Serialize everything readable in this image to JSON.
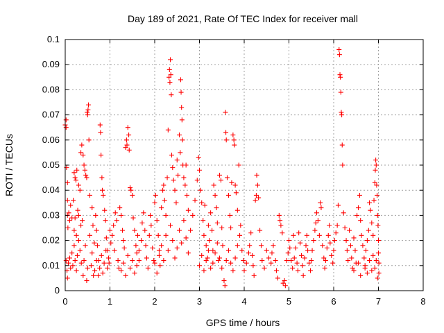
{
  "chart_data": {
    "type": "scatter",
    "title": "Day 189 of 2021, Rate Of TEC Index for receiver mall",
    "xlabel": "GPS time / hours",
    "ylabel": "ROTI / TECUs",
    "xlim": [
      0,
      8
    ],
    "ylim": [
      0,
      0.1
    ],
    "xticks": [
      "0",
      "1",
      "2",
      "3",
      "4",
      "5",
      "6",
      "7",
      "8"
    ],
    "yticks": [
      "0",
      "0.01",
      "0.02",
      "0.03",
      "0.04",
      "0.05",
      "0.06",
      "0.07",
      "0.08",
      "0.09",
      "0.1"
    ],
    "grid": true,
    "marker": "+",
    "color": "#ff0000",
    "points": [
      [
        0.0,
        0.066
      ],
      [
        0.02,
        0.068
      ],
      [
        0.02,
        0.065
      ],
      [
        0.03,
        0.049
      ],
      [
        0.05,
        0.043
      ],
      [
        0.05,
        0.036
      ],
      [
        0.05,
        0.03
      ],
      [
        0.06,
        0.025
      ],
      [
        0.08,
        0.031
      ],
      [
        0.1,
        0.028
      ],
      [
        0.12,
        0.034
      ],
      [
        0.15,
        0.029
      ],
      [
        0.18,
        0.036
      ],
      [
        0.2,
        0.024
      ],
      [
        0.22,
        0.029
      ],
      [
        0.25,
        0.022
      ],
      [
        0.28,
        0.032
      ],
      [
        0.3,
        0.03
      ],
      [
        0.35,
        0.026
      ],
      [
        0.38,
        0.028
      ],
      [
        0.02,
        0.012
      ],
      [
        0.04,
        0.008
      ],
      [
        0.05,
        0.005
      ],
      [
        0.07,
        0.011
      ],
      [
        0.1,
        0.013
      ],
      [
        0.12,
        0.009
      ],
      [
        0.15,
        0.015
      ],
      [
        0.17,
        0.01
      ],
      [
        0.2,
        0.018
      ],
      [
        0.22,
        0.012
      ],
      [
        0.25,
        0.008
      ],
      [
        0.27,
        0.014
      ],
      [
        0.3,
        0.02
      ],
      [
        0.33,
        0.016
      ],
      [
        0.36,
        0.011
      ],
      [
        0.4,
        0.006
      ],
      [
        0.42,
        0.012
      ],
      [
        0.45,
        0.018
      ],
      [
        0.48,
        0.004
      ],
      [
        0.5,
        0.009
      ],
      [
        0.2,
        0.047
      ],
      [
        0.22,
        0.045
      ],
      [
        0.24,
        0.044
      ],
      [
        0.26,
        0.048
      ],
      [
        0.3,
        0.042
      ],
      [
        0.33,
        0.04
      ],
      [
        0.35,
        0.055
      ],
      [
        0.37,
        0.058
      ],
      [
        0.4,
        0.054
      ],
      [
        0.42,
        0.05
      ],
      [
        0.44,
        0.048
      ],
      [
        0.46,
        0.046
      ],
      [
        0.48,
        0.045
      ],
      [
        0.5,
        0.07
      ],
      [
        0.51,
        0.072
      ],
      [
        0.52,
        0.074
      ],
      [
        0.49,
        0.071
      ],
      [
        0.53,
        0.06
      ],
      [
        0.55,
        0.038
      ],
      [
        0.6,
        0.033
      ],
      [
        0.55,
        0.022
      ],
      [
        0.6,
        0.015
      ],
      [
        0.62,
        0.026
      ],
      [
        0.65,
        0.019
      ],
      [
        0.68,
        0.03
      ],
      [
        0.7,
        0.024
      ],
      [
        0.72,
        0.018
      ],
      [
        0.75,
        0.012
      ],
      [
        0.78,
        0.066
      ],
      [
        0.79,
        0.063
      ],
      [
        0.8,
        0.054
      ],
      [
        0.82,
        0.045
      ],
      [
        0.83,
        0.04
      ],
      [
        0.85,
        0.038
      ],
      [
        0.88,
        0.032
      ],
      [
        0.9,
        0.028
      ],
      [
        0.92,
        0.021
      ],
      [
        0.95,
        0.016
      ],
      [
        0.98,
        0.011
      ],
      [
        1.0,
        0.024
      ],
      [
        0.58,
        0.01
      ],
      [
        0.63,
        0.006
      ],
      [
        0.66,
        0.008
      ],
      [
        0.7,
        0.012
      ],
      [
        0.74,
        0.006
      ],
      [
        0.77,
        0.009
      ],
      [
        0.81,
        0.014
      ],
      [
        0.84,
        0.007
      ],
      [
        0.87,
        0.011
      ],
      [
        0.91,
        0.016
      ],
      [
        0.94,
        0.009
      ],
      [
        0.97,
        0.013
      ],
      [
        1.02,
        0.019
      ],
      [
        1.05,
        0.022
      ],
      [
        1.08,
        0.026
      ],
      [
        1.1,
        0.016
      ],
      [
        1.12,
        0.031
      ],
      [
        1.15,
        0.028
      ],
      [
        1.18,
        0.012
      ],
      [
        1.2,
        0.009
      ],
      [
        1.22,
        0.033
      ],
      [
        1.25,
        0.03
      ],
      [
        1.28,
        0.024
      ],
      [
        1.3,
        0.02
      ],
      [
        1.32,
        0.017
      ],
      [
        1.35,
        0.057
      ],
      [
        1.37,
        0.06
      ],
      [
        1.38,
        0.058
      ],
      [
        1.4,
        0.065
      ],
      [
        1.42,
        0.062
      ],
      [
        1.43,
        0.056
      ],
      [
        1.45,
        0.041
      ],
      [
        1.47,
        0.04
      ],
      [
        1.5,
        0.038
      ],
      [
        1.52,
        0.029
      ],
      [
        1.55,
        0.024
      ],
      [
        1.58,
        0.018
      ],
      [
        1.6,
        0.015
      ],
      [
        1.62,
        0.022
      ],
      [
        1.65,
        0.012
      ],
      [
        1.25,
        0.008
      ],
      [
        1.3,
        0.011
      ],
      [
        1.35,
        0.006
      ],
      [
        1.4,
        0.014
      ],
      [
        1.45,
        0.009
      ],
      [
        1.5,
        0.012
      ],
      [
        1.55,
        0.007
      ],
      [
        1.6,
        0.01
      ],
      [
        1.65,
        0.016
      ],
      [
        1.7,
        0.02
      ],
      [
        1.72,
        0.027
      ],
      [
        1.75,
        0.031
      ],
      [
        1.78,
        0.024
      ],
      [
        1.8,
        0.018
      ],
      [
        1.82,
        0.013
      ],
      [
        1.85,
        0.009
      ],
      [
        1.88,
        0.022
      ],
      [
        1.9,
        0.03
      ],
      [
        1.92,
        0.026
      ],
      [
        1.95,
        0.017
      ],
      [
        1.98,
        0.012
      ],
      [
        2.0,
        0.035
      ],
      [
        2.02,
        0.038
      ],
      [
        2.05,
        0.028
      ],
      [
        2.08,
        0.022
      ],
      [
        2.1,
        0.016
      ],
      [
        2.12,
        0.01
      ],
      [
        2.15,
        0.033
      ],
      [
        2.18,
        0.04
      ],
      [
        2.2,
        0.042
      ],
      [
        2.22,
        0.036
      ],
      [
        2.25,
        0.03
      ],
      [
        2.28,
        0.045
      ],
      [
        2.3,
        0.064
      ],
      [
        2.32,
        0.085
      ],
      [
        2.33,
        0.088
      ],
      [
        2.34,
        0.083
      ],
      [
        2.35,
        0.092
      ],
      [
        2.36,
        0.086
      ],
      [
        2.37,
        0.078
      ],
      [
        2.38,
        0.054
      ],
      [
        2.4,
        0.049
      ],
      [
        2.42,
        0.044
      ],
      [
        2.45,
        0.04
      ],
      [
        2.48,
        0.035
      ],
      [
        2.5,
        0.052
      ],
      [
        2.52,
        0.046
      ],
      [
        2.55,
        0.062
      ],
      [
        2.57,
        0.055
      ],
      [
        2.58,
        0.084
      ],
      [
        2.59,
        0.079
      ],
      [
        2.6,
        0.073
      ],
      [
        2.61,
        0.068
      ],
      [
        2.62,
        0.06
      ],
      [
        2.63,
        0.05
      ],
      [
        2.65,
        0.045
      ],
      [
        2.68,
        0.042
      ],
      [
        2.7,
        0.05
      ],
      [
        2.72,
        0.038
      ],
      [
        2.75,
        0.032
      ],
      [
        2.0,
        0.011
      ],
      [
        2.05,
        0.007
      ],
      [
        2.1,
        0.014
      ],
      [
        2.15,
        0.018
      ],
      [
        2.2,
        0.012
      ],
      [
        2.25,
        0.022
      ],
      [
        2.3,
        0.016
      ],
      [
        2.35,
        0.026
      ],
      [
        2.4,
        0.02
      ],
      [
        2.45,
        0.013
      ],
      [
        2.5,
        0.017
      ],
      [
        2.55,
        0.024
      ],
      [
        2.6,
        0.019
      ],
      [
        2.65,
        0.028
      ],
      [
        2.7,
        0.021
      ],
      [
        2.75,
        0.015
      ],
      [
        2.8,
        0.024
      ],
      [
        2.85,
        0.03
      ],
      [
        2.9,
        0.036
      ],
      [
        2.95,
        0.044
      ],
      [
        2.98,
        0.053
      ],
      [
        3.0,
        0.048
      ],
      [
        3.02,
        0.04
      ],
      [
        3.05,
        0.035
      ],
      [
        3.08,
        0.028
      ],
      [
        3.1,
        0.022
      ],
      [
        3.12,
        0.034
      ],
      [
        3.15,
        0.018
      ],
      [
        3.18,
        0.013
      ],
      [
        3.2,
        0.026
      ],
      [
        3.22,
        0.02
      ],
      [
        3.25,
        0.031
      ],
      [
        3.28,
        0.024
      ],
      [
        3.3,
        0.016
      ],
      [
        3.32,
        0.042
      ],
      [
        3.35,
        0.038
      ],
      [
        3.38,
        0.033
      ],
      [
        3.4,
        0.027
      ],
      [
        3.42,
        0.012
      ],
      [
        3.45,
        0.046
      ],
      [
        3.48,
        0.044
      ],
      [
        3.5,
        0.025
      ],
      [
        3.52,
        0.018
      ],
      [
        3.55,
        0.004
      ],
      [
        3.57,
        0.002
      ],
      [
        3.58,
        0.071
      ],
      [
        3.59,
        0.063
      ],
      [
        3.6,
        0.06
      ],
      [
        3.62,
        0.045
      ],
      [
        3.65,
        0.038
      ],
      [
        3.68,
        0.03
      ],
      [
        3.7,
        0.025
      ],
      [
        3.72,
        0.043
      ],
      [
        3.75,
        0.062
      ],
      [
        3.77,
        0.06
      ],
      [
        3.78,
        0.058
      ],
      [
        3.8,
        0.042
      ],
      [
        3.82,
        0.039
      ],
      [
        3.85,
        0.032
      ],
      [
        3.88,
        0.05
      ],
      [
        3.0,
        0.01
      ],
      [
        3.05,
        0.014
      ],
      [
        3.1,
        0.008
      ],
      [
        3.15,
        0.012
      ],
      [
        3.2,
        0.016
      ],
      [
        3.25,
        0.009
      ],
      [
        3.3,
        0.011
      ],
      [
        3.35,
        0.015
      ],
      [
        3.4,
        0.019
      ],
      [
        3.45,
        0.013
      ],
      [
        3.5,
        0.009
      ],
      [
        3.6,
        0.012
      ],
      [
        3.65,
        0.016
      ],
      [
        3.7,
        0.011
      ],
      [
        3.75,
        0.008
      ],
      [
        3.8,
        0.013
      ],
      [
        3.85,
        0.018
      ],
      [
        3.9,
        0.022
      ],
      [
        3.92,
        0.026
      ],
      [
        3.95,
        0.016
      ],
      [
        3.98,
        0.012
      ],
      [
        4.0,
        0.008
      ],
      [
        4.05,
        0.011
      ],
      [
        4.1,
        0.015
      ],
      [
        4.12,
        0.018
      ],
      [
        4.15,
        0.023
      ],
      [
        4.18,
        0.014
      ],
      [
        4.2,
        0.01
      ],
      [
        4.22,
        0.006
      ],
      [
        4.25,
        0.036
      ],
      [
        4.27,
        0.038
      ],
      [
        4.28,
        0.046
      ],
      [
        4.3,
        0.042
      ],
      [
        4.32,
        0.037
      ],
      [
        4.35,
        0.024
      ],
      [
        4.38,
        0.018
      ],
      [
        4.4,
        0.012
      ],
      [
        4.45,
        0.009
      ],
      [
        4.5,
        0.016
      ],
      [
        4.55,
        0.013
      ],
      [
        4.6,
        0.011
      ],
      [
        4.62,
        0.015
      ],
      [
        4.65,
        0.018
      ],
      [
        4.7,
        0.012
      ],
      [
        4.72,
        0.008
      ],
      [
        4.75,
        0.005
      ],
      [
        4.78,
        0.03
      ],
      [
        4.8,
        0.028
      ],
      [
        4.82,
        0.026
      ],
      [
        4.85,
        0.023
      ],
      [
        4.87,
        0.003
      ],
      [
        4.9,
        0.004
      ],
      [
        4.92,
        0.002
      ],
      [
        4.95,
        0.012
      ],
      [
        4.98,
        0.015
      ],
      [
        5.0,
        0.02
      ],
      [
        5.02,
        0.017
      ],
      [
        5.05,
        0.012
      ],
      [
        5.08,
        0.009
      ],
      [
        5.1,
        0.022
      ],
      [
        5.12,
        0.013
      ],
      [
        5.15,
        0.017
      ],
      [
        5.18,
        0.011
      ],
      [
        5.2,
        0.008
      ],
      [
        5.22,
        0.023
      ],
      [
        5.25,
        0.019
      ],
      [
        5.28,
        0.014
      ],
      [
        5.3,
        0.01
      ],
      [
        5.32,
        0.006
      ],
      [
        5.35,
        0.013
      ],
      [
        5.38,
        0.018
      ],
      [
        5.4,
        0.022
      ],
      [
        5.42,
        0.016
      ],
      [
        5.45,
        0.011
      ],
      [
        5.48,
        0.008
      ],
      [
        5.5,
        0.012
      ],
      [
        5.52,
        0.016
      ],
      [
        5.55,
        0.02
      ],
      [
        5.58,
        0.024
      ],
      [
        5.6,
        0.027
      ],
      [
        5.62,
        0.031
      ],
      [
        5.65,
        0.028
      ],
      [
        5.68,
        0.022
      ],
      [
        5.7,
        0.035
      ],
      [
        5.72,
        0.033
      ],
      [
        5.75,
        0.018
      ],
      [
        5.78,
        0.013
      ],
      [
        5.8,
        0.009
      ],
      [
        5.82,
        0.012
      ],
      [
        5.85,
        0.017
      ],
      [
        5.88,
        0.022
      ],
      [
        5.9,
        0.026
      ],
      [
        5.92,
        0.019
      ],
      [
        5.95,
        0.014
      ],
      [
        5.98,
        0.011
      ],
      [
        6.0,
        0.016
      ],
      [
        6.02,
        0.02
      ],
      [
        6.05,
        0.023
      ],
      [
        6.08,
        0.026
      ],
      [
        6.1,
        0.034
      ],
      [
        6.12,
        0.096
      ],
      [
        6.13,
        0.094
      ],
      [
        6.14,
        0.086
      ],
      [
        6.15,
        0.085
      ],
      [
        6.16,
        0.079
      ],
      [
        6.17,
        0.071
      ],
      [
        6.18,
        0.07
      ],
      [
        6.19,
        0.058
      ],
      [
        6.2,
        0.05
      ],
      [
        6.22,
        0.031
      ],
      [
        6.25,
        0.025
      ],
      [
        6.28,
        0.02
      ],
      [
        6.3,
        0.016
      ],
      [
        6.32,
        0.012
      ],
      [
        6.35,
        0.024
      ],
      [
        6.38,
        0.018
      ],
      [
        6.4,
        0.013
      ],
      [
        6.42,
        0.009
      ],
      [
        6.45,
        0.021
      ],
      [
        6.48,
        0.016
      ],
      [
        6.5,
        0.011
      ],
      [
        6.52,
        0.03
      ],
      [
        6.55,
        0.033
      ],
      [
        6.58,
        0.038
      ],
      [
        6.6,
        0.028
      ],
      [
        6.62,
        0.022
      ],
      [
        6.65,
        0.018
      ],
      [
        6.68,
        0.013
      ],
      [
        6.7,
        0.009
      ],
      [
        6.72,
        0.016
      ],
      [
        6.75,
        0.02
      ],
      [
        6.78,
        0.024
      ],
      [
        6.8,
        0.035
      ],
      [
        6.82,
        0.032
      ],
      [
        6.85,
        0.027
      ],
      [
        6.88,
        0.022
      ],
      [
        6.9,
        0.036
      ],
      [
        6.92,
        0.043
      ],
      [
        6.93,
        0.048
      ],
      [
        6.94,
        0.052
      ],
      [
        6.95,
        0.05
      ],
      [
        6.96,
        0.042
      ],
      [
        6.97,
        0.038
      ],
      [
        6.98,
        0.03
      ],
      [
        6.99,
        0.026
      ],
      [
        7.0,
        0.02
      ],
      [
        7.0,
        0.015
      ],
      [
        7.01,
        0.011
      ],
      [
        7.01,
        0.007
      ],
      [
        6.98,
        0.005
      ],
      [
        6.95,
        0.012
      ],
      [
        6.92,
        0.009
      ],
      [
        6.88,
        0.014
      ],
      [
        6.85,
        0.008
      ],
      [
        6.8,
        0.012
      ],
      [
        6.75,
        0.007
      ],
      [
        6.7,
        0.01
      ],
      [
        6.6,
        0.006
      ],
      [
        6.55,
        0.011
      ],
      [
        6.45,
        0.008
      ]
    ]
  }
}
